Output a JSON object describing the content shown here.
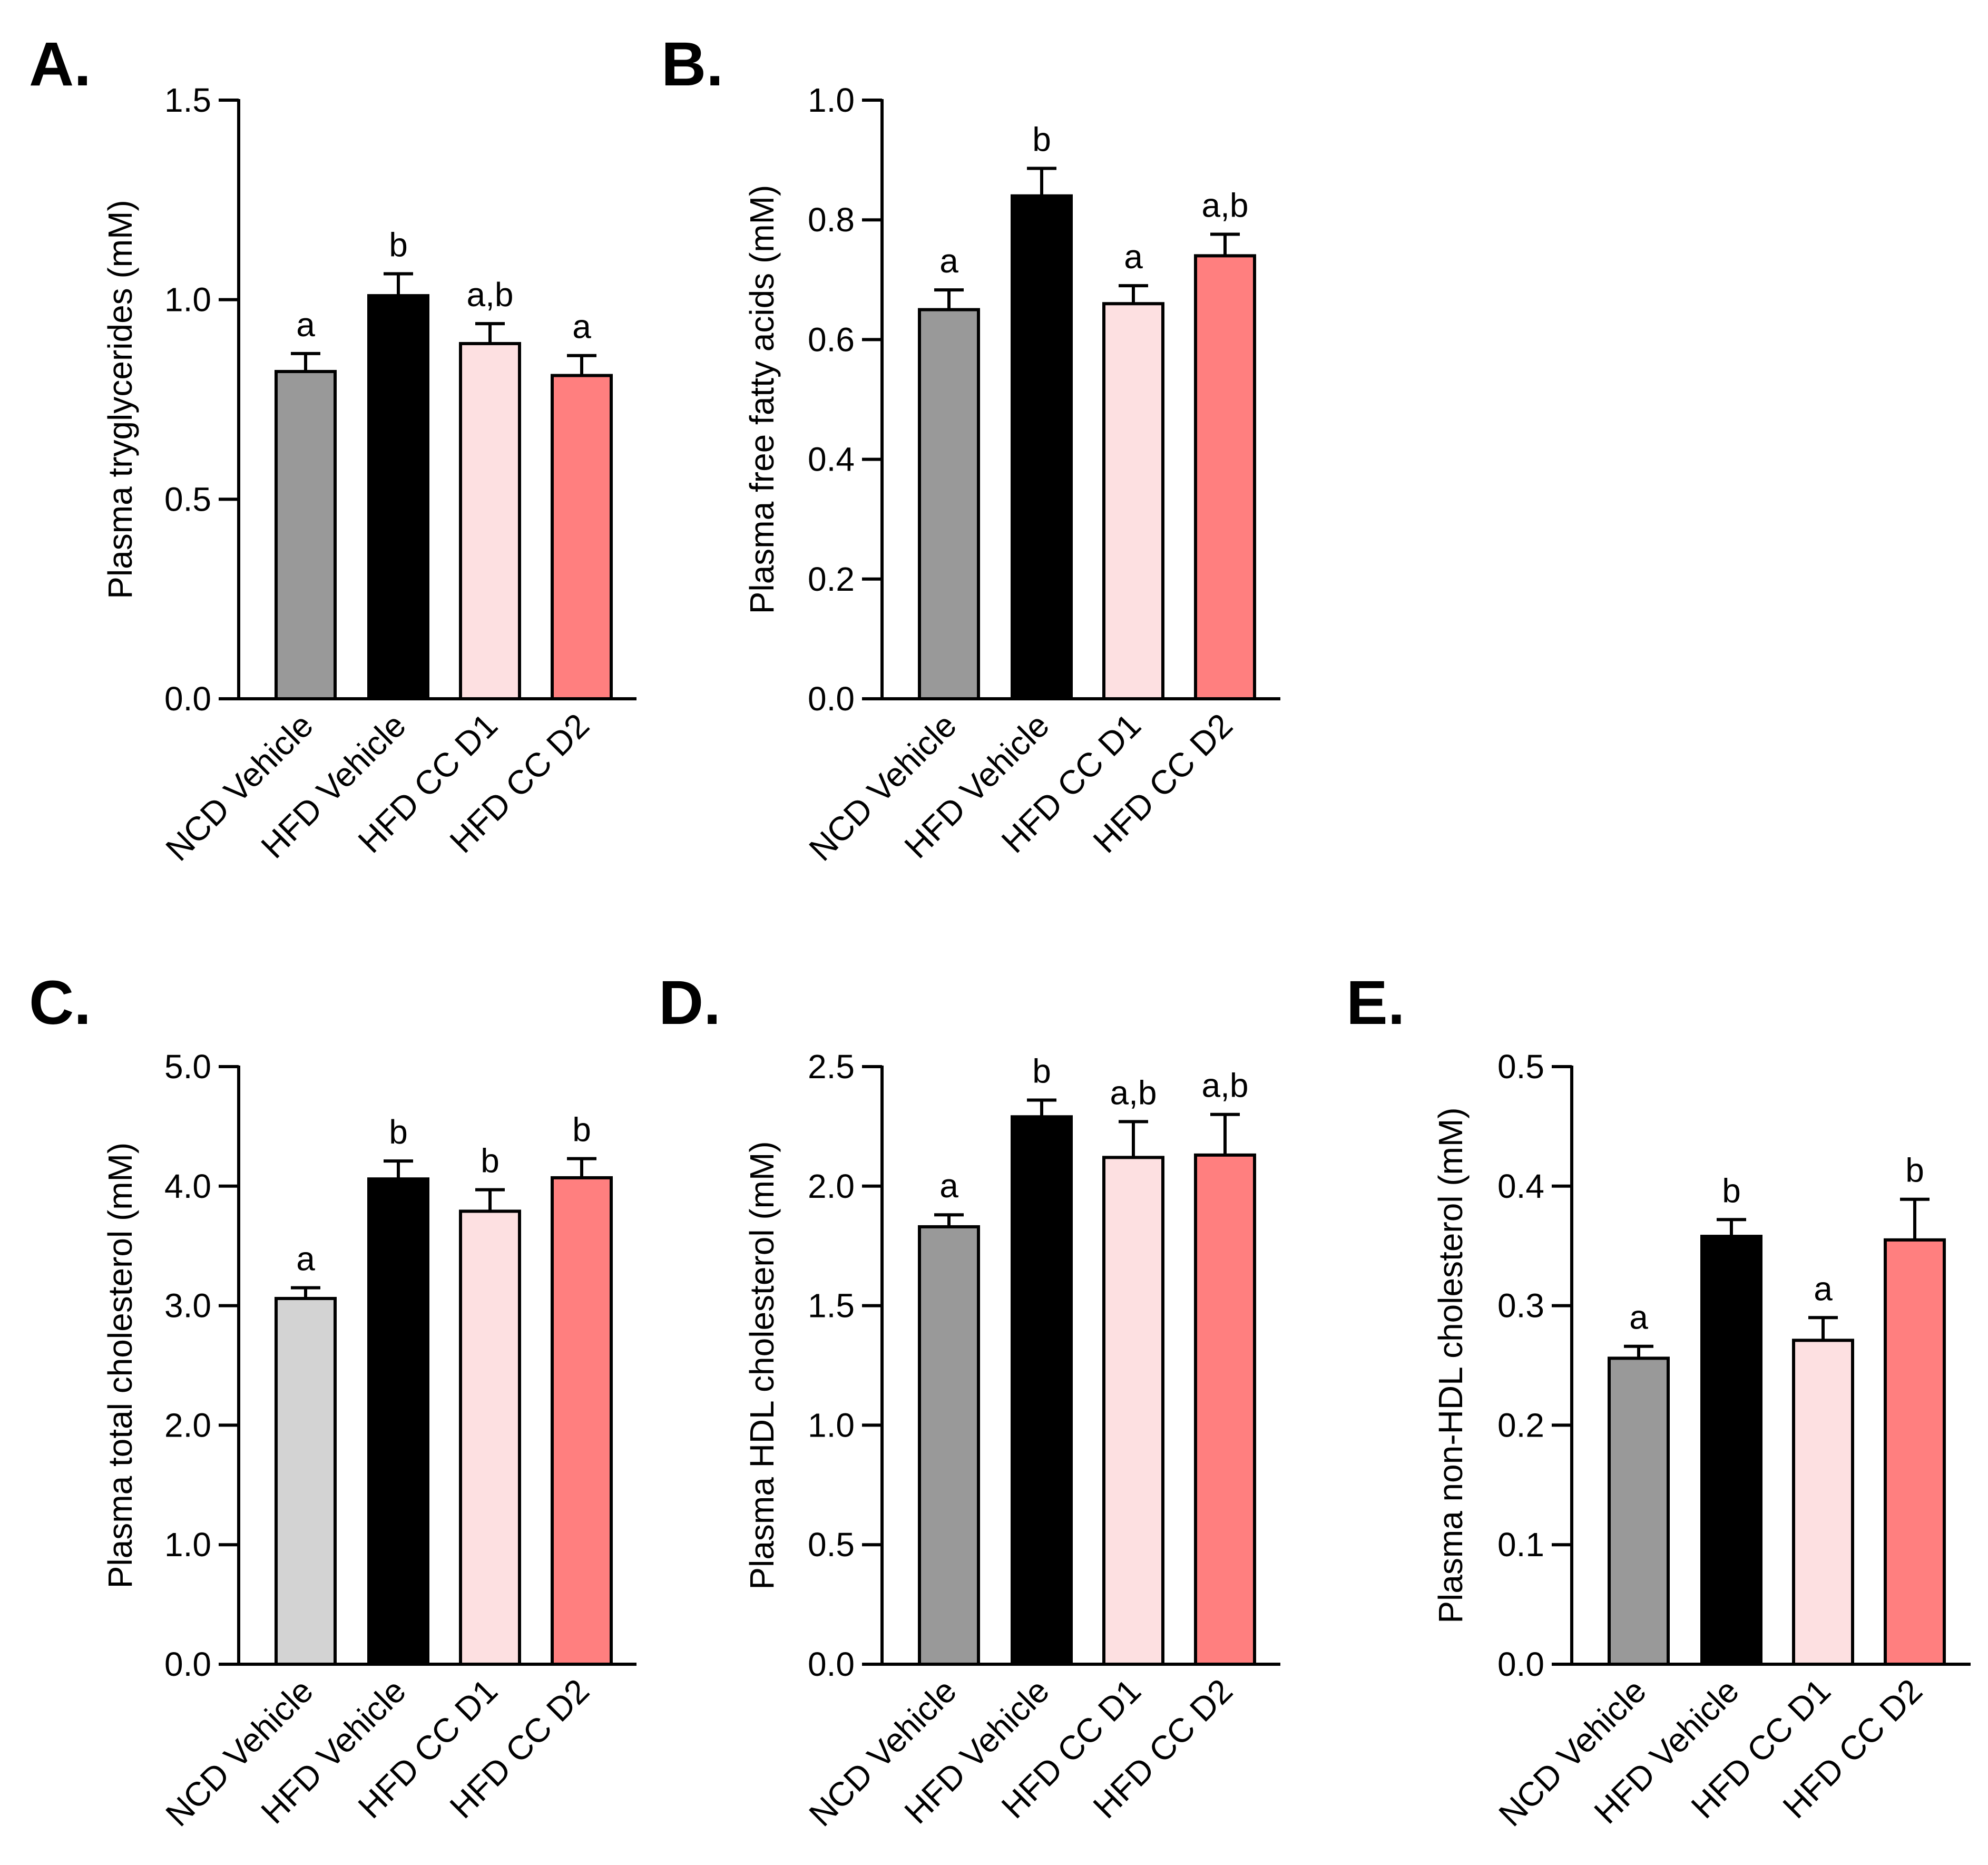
{
  "chart_data": [
    {
      "panel": "A.",
      "type": "bar",
      "ylabel": "Plasma tryglycerides (mM)",
      "ylim": [
        0,
        1.5
      ],
      "yticks": [
        "0.0",
        "0.5",
        "1.0",
        "1.5"
      ],
      "categories": [
        "NCD Vehicle",
        "HFD Vehicle",
        "HFD CC D1",
        "HFD CC D2"
      ],
      "values": [
        0.82,
        1.01,
        0.89,
        0.81
      ],
      "errors": [
        0.045,
        0.055,
        0.05,
        0.05
      ],
      "significance": [
        "a",
        "b",
        "a,b",
        "a"
      ],
      "colors": [
        "#999999",
        "#000000",
        "#fde0e1",
        "#ff7f7f"
      ]
    },
    {
      "panel": "B.",
      "type": "bar",
      "ylabel": "Plasma free fatty acids (mM)",
      "ylim": [
        0,
        1.0
      ],
      "yticks": [
        "0.0",
        "0.2",
        "0.4",
        "0.6",
        "0.8",
        "1.0"
      ],
      "categories": [
        "NCD Vehicle",
        "HFD Vehicle",
        "HFD CC D1",
        "HFD CC D2"
      ],
      "values": [
        0.65,
        0.84,
        0.66,
        0.74
      ],
      "errors": [
        0.033,
        0.046,
        0.03,
        0.036
      ],
      "significance": [
        "a",
        "b",
        "a",
        "a,b"
      ],
      "colors": [
        "#999999",
        "#000000",
        "#fde0e1",
        "#ff7f7f"
      ]
    },
    {
      "panel": "C.",
      "type": "bar",
      "ylabel": "Plasma total cholesterol (mM)",
      "ylim": [
        0,
        5.0
      ],
      "yticks": [
        "0.0",
        "1.0",
        "2.0",
        "3.0",
        "4.0",
        "5.0"
      ],
      "categories": [
        "NCD Vehicle",
        "HFD Vehicle",
        "HFD CC D1",
        "HFD CC D2"
      ],
      "values": [
        3.06,
        4.06,
        3.79,
        4.07
      ],
      "errors": [
        0.09,
        0.15,
        0.18,
        0.16
      ],
      "significance": [
        "a",
        "b",
        "b",
        "b"
      ],
      "colors": [
        "#d3d3d3",
        "#000000",
        "#fde0e1",
        "#ff7f7f"
      ]
    },
    {
      "panel": "D.",
      "type": "bar",
      "ylabel": "Plasma HDL cholesterol (mM)",
      "ylim": [
        0,
        2.5
      ],
      "yticks": [
        "0.0",
        "0.5",
        "1.0",
        "1.5",
        "2.0",
        "2.5"
      ],
      "categories": [
        "NCD Vehicle",
        "HFD Vehicle",
        "HFD CC D1",
        "HFD CC D2"
      ],
      "values": [
        1.83,
        2.29,
        2.12,
        2.13
      ],
      "errors": [
        0.05,
        0.07,
        0.15,
        0.17
      ],
      "significance": [
        "a",
        "b",
        "a,b",
        "a,b"
      ],
      "colors": [
        "#999999",
        "#000000",
        "#fde0e1",
        "#ff7f7f"
      ]
    },
    {
      "panel": "E.",
      "type": "bar",
      "ylabel": "Plasma non-HDL cholesterol (mM)",
      "ylim": [
        0,
        0.5
      ],
      "yticks": [
        "0.0",
        "0.1",
        "0.2",
        "0.3",
        "0.4",
        "0.5"
      ],
      "categories": [
        "NCD Vehicle",
        "HFD Vehicle",
        "HFD CC D1",
        "HFD CC D2"
      ],
      "values": [
        0.256,
        0.358,
        0.271,
        0.355
      ],
      "errors": [
        0.01,
        0.014,
        0.019,
        0.034
      ],
      "significance": [
        "a",
        "b",
        "a",
        "b"
      ],
      "colors": [
        "#999999",
        "#000000",
        "#fde0e1",
        "#ff7f7f"
      ]
    }
  ]
}
